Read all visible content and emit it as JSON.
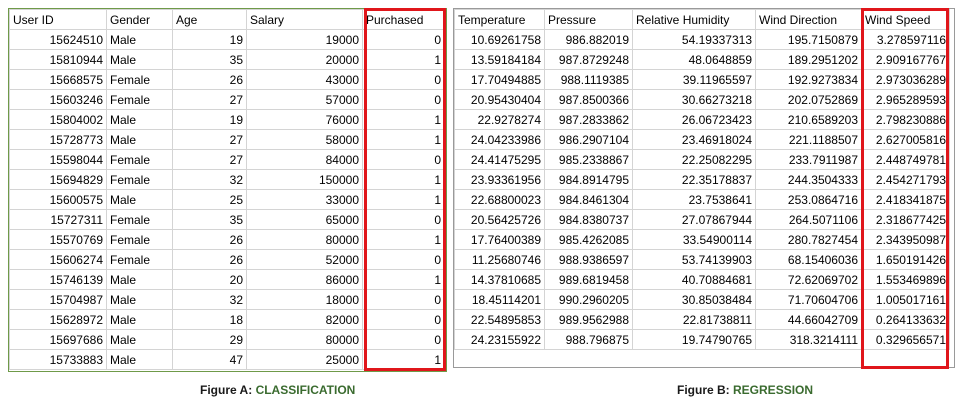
{
  "figure_a": {
    "headers": [
      "User ID",
      "Gender",
      "Age",
      "Salary",
      "Purchased"
    ],
    "rows": [
      [
        "15624510",
        "Male",
        "19",
        "19000",
        "0"
      ],
      [
        "15810944",
        "Male",
        "35",
        "20000",
        "1"
      ],
      [
        "15668575",
        "Female",
        "26",
        "43000",
        "0"
      ],
      [
        "15603246",
        "Female",
        "27",
        "57000",
        "0"
      ],
      [
        "15804002",
        "Male",
        "19",
        "76000",
        "1"
      ],
      [
        "15728773",
        "Male",
        "27",
        "58000",
        "1"
      ],
      [
        "15598044",
        "Female",
        "27",
        "84000",
        "0"
      ],
      [
        "15694829",
        "Female",
        "32",
        "150000",
        "1"
      ],
      [
        "15600575",
        "Male",
        "25",
        "33000",
        "1"
      ],
      [
        "15727311",
        "Female",
        "35",
        "65000",
        "0"
      ],
      [
        "15570769",
        "Female",
        "26",
        "80000",
        "1"
      ],
      [
        "15606274",
        "Female",
        "26",
        "52000",
        "0"
      ],
      [
        "15746139",
        "Male",
        "20",
        "86000",
        "1"
      ],
      [
        "15704987",
        "Male",
        "32",
        "18000",
        "0"
      ],
      [
        "15628972",
        "Male",
        "18",
        "82000",
        "0"
      ],
      [
        "15697686",
        "Male",
        "29",
        "80000",
        "0"
      ],
      [
        "15733883",
        "Male",
        "47",
        "25000",
        "1"
      ]
    ],
    "caption_label": "Figure A:",
    "caption_kind": "CLASSIFICATION"
  },
  "figure_b": {
    "headers": [
      "Temperature",
      "Pressure",
      "Relative Humidity",
      "Wind Direction",
      "Wind Speed"
    ],
    "rows": [
      [
        "10.69261758",
        "986.882019",
        "54.19337313",
        "195.7150879",
        "3.278597116"
      ],
      [
        "13.59184184",
        "987.8729248",
        "48.0648859",
        "189.2951202",
        "2.909167767"
      ],
      [
        "17.70494885",
        "988.1119385",
        "39.11965597",
        "192.9273834",
        "2.973036289"
      ],
      [
        "20.95430404",
        "987.8500366",
        "30.66273218",
        "202.0752869",
        "2.965289593"
      ],
      [
        "22.9278274",
        "987.2833862",
        "26.06723423",
        "210.6589203",
        "2.798230886"
      ],
      [
        "24.04233986",
        "986.2907104",
        "23.46918024",
        "221.1188507",
        "2.627005816"
      ],
      [
        "24.41475295",
        "985.2338867",
        "22.25082295",
        "233.7911987",
        "2.448749781"
      ],
      [
        "23.93361956",
        "984.8914795",
        "22.35178837",
        "244.3504333",
        "2.454271793"
      ],
      [
        "22.68800023",
        "984.8461304",
        "23.7538641",
        "253.0864716",
        "2.418341875"
      ],
      [
        "20.56425726",
        "984.8380737",
        "27.07867944",
        "264.5071106",
        "2.318677425"
      ],
      [
        "17.76400389",
        "985.4262085",
        "33.54900114",
        "280.7827454",
        "2.343950987"
      ],
      [
        "11.25680746",
        "988.9386597",
        "53.74139903",
        "68.15406036",
        "1.650191426"
      ],
      [
        "14.37810685",
        "989.6819458",
        "40.70884681",
        "72.62069702",
        "1.553469896"
      ],
      [
        "18.45114201",
        "990.2960205",
        "30.85038484",
        "71.70604706",
        "1.005017161"
      ],
      [
        "22.54895853",
        "989.9562988",
        "22.81738811",
        "44.66042709",
        "0.264133632"
      ],
      [
        "24.23155922",
        "988.796875",
        "19.74790765",
        "318.3214111",
        "0.329656571"
      ]
    ],
    "caption_label": "Figure B:",
    "caption_kind": "REGRESSION"
  }
}
